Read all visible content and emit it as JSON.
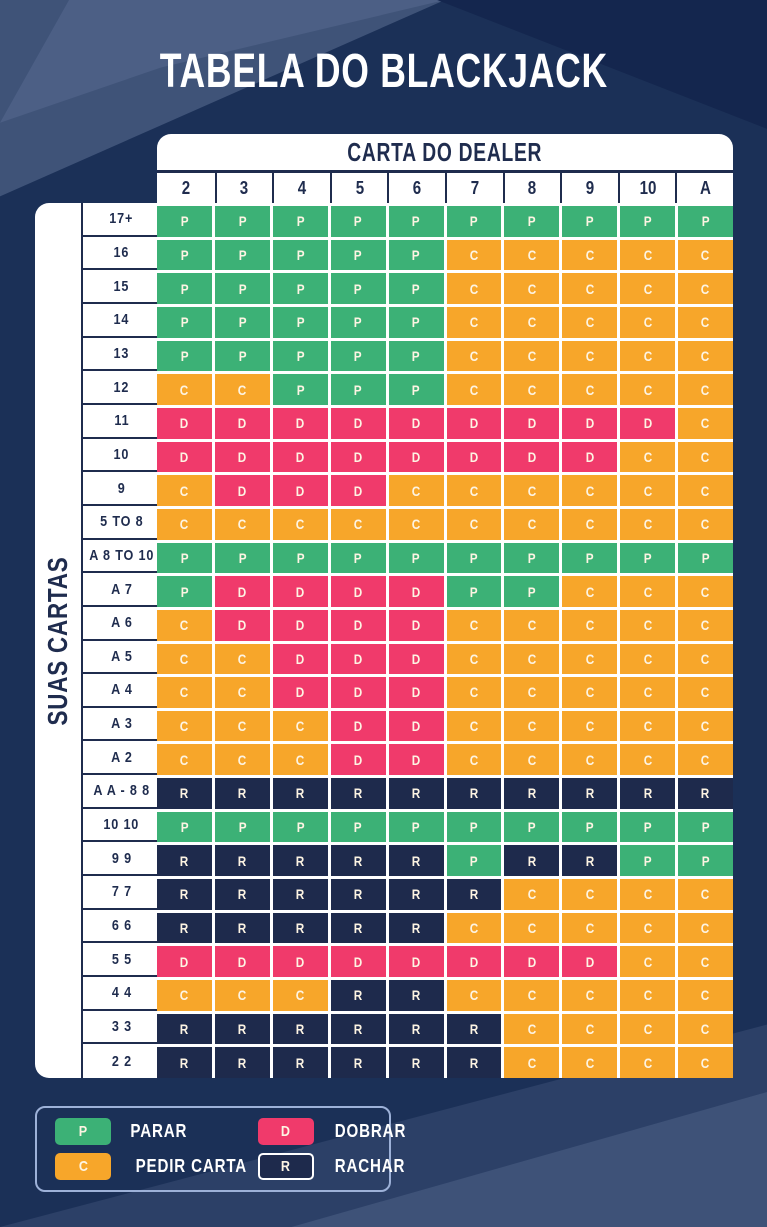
{
  "title": "TABELA DO BLACKJACK",
  "chart_data": {
    "type": "table",
    "title": "TABELA DO BLACKJACK",
    "column_group_label": "CARTA DO DEALER",
    "row_group_label": "SUAS CARTAS",
    "columns": [
      "2",
      "3",
      "4",
      "5",
      "6",
      "7",
      "8",
      "9",
      "10",
      "A"
    ],
    "rows": [
      {
        "label": "17+",
        "cells": [
          "P",
          "P",
          "P",
          "P",
          "P",
          "P",
          "P",
          "P",
          "P",
          "P"
        ]
      },
      {
        "label": "16",
        "cells": [
          "P",
          "P",
          "P",
          "P",
          "P",
          "C",
          "C",
          "C",
          "C",
          "C"
        ]
      },
      {
        "label": "15",
        "cells": [
          "P",
          "P",
          "P",
          "P",
          "P",
          "C",
          "C",
          "C",
          "C",
          "C"
        ]
      },
      {
        "label": "14",
        "cells": [
          "P",
          "P",
          "P",
          "P",
          "P",
          "C",
          "C",
          "C",
          "C",
          "C"
        ]
      },
      {
        "label": "13",
        "cells": [
          "P",
          "P",
          "P",
          "P",
          "P",
          "C",
          "C",
          "C",
          "C",
          "C"
        ]
      },
      {
        "label": "12",
        "cells": [
          "C",
          "C",
          "P",
          "P",
          "P",
          "C",
          "C",
          "C",
          "C",
          "C"
        ]
      },
      {
        "label": "11",
        "cells": [
          "D",
          "D",
          "D",
          "D",
          "D",
          "D",
          "D",
          "D",
          "D",
          "C"
        ]
      },
      {
        "label": "10",
        "cells": [
          "D",
          "D",
          "D",
          "D",
          "D",
          "D",
          "D",
          "D",
          "C",
          "C"
        ]
      },
      {
        "label": "9",
        "cells": [
          "C",
          "D",
          "D",
          "D",
          "C",
          "C",
          "C",
          "C",
          "C",
          "C"
        ]
      },
      {
        "label": "5 TO 8",
        "cells": [
          "C",
          "C",
          "C",
          "C",
          "C",
          "C",
          "C",
          "C",
          "C",
          "C"
        ]
      },
      {
        "label": "A 8 TO 10",
        "cells": [
          "P",
          "P",
          "P",
          "P",
          "P",
          "P",
          "P",
          "P",
          "P",
          "P"
        ]
      },
      {
        "label": "A 7",
        "cells": [
          "P",
          "D",
          "D",
          "D",
          "D",
          "P",
          "P",
          "C",
          "C",
          "C"
        ]
      },
      {
        "label": "A 6",
        "cells": [
          "C",
          "D",
          "D",
          "D",
          "D",
          "C",
          "C",
          "C",
          "C",
          "C"
        ]
      },
      {
        "label": "A 5",
        "cells": [
          "C",
          "C",
          "D",
          "D",
          "D",
          "C",
          "C",
          "C",
          "C",
          "C"
        ]
      },
      {
        "label": "A 4",
        "cells": [
          "C",
          "C",
          "D",
          "D",
          "D",
          "C",
          "C",
          "C",
          "C",
          "C"
        ]
      },
      {
        "label": "A 3",
        "cells": [
          "C",
          "C",
          "C",
          "D",
          "D",
          "C",
          "C",
          "C",
          "C",
          "C"
        ]
      },
      {
        "label": "A 2",
        "cells": [
          "C",
          "C",
          "C",
          "D",
          "D",
          "C",
          "C",
          "C",
          "C",
          "C"
        ]
      },
      {
        "label": "A A - 8 8",
        "cells": [
          "R",
          "R",
          "R",
          "R",
          "R",
          "R",
          "R",
          "R",
          "R",
          "R"
        ]
      },
      {
        "label": "10 10",
        "cells": [
          "P",
          "P",
          "P",
          "P",
          "P",
          "P",
          "P",
          "P",
          "P",
          "P"
        ]
      },
      {
        "label": "9 9",
        "cells": [
          "R",
          "R",
          "R",
          "R",
          "R",
          "P",
          "R",
          "R",
          "P",
          "P"
        ]
      },
      {
        "label": "7 7",
        "cells": [
          "R",
          "R",
          "R",
          "R",
          "R",
          "R",
          "C",
          "C",
          "C",
          "C"
        ]
      },
      {
        "label": "6 6",
        "cells": [
          "R",
          "R",
          "R",
          "R",
          "R",
          "C",
          "C",
          "C",
          "C",
          "C"
        ]
      },
      {
        "label": "5 5",
        "cells": [
          "D",
          "D",
          "D",
          "D",
          "D",
          "D",
          "D",
          "D",
          "C",
          "C"
        ]
      },
      {
        "label": "4 4",
        "cells": [
          "C",
          "C",
          "C",
          "R",
          "R",
          "C",
          "C",
          "C",
          "C",
          "C"
        ]
      },
      {
        "label": "3 3",
        "cells": [
          "R",
          "R",
          "R",
          "R",
          "R",
          "R",
          "C",
          "C",
          "C",
          "C"
        ]
      },
      {
        "label": "2 2",
        "cells": [
          "R",
          "R",
          "R",
          "R",
          "R",
          "R",
          "C",
          "C",
          "C",
          "C"
        ]
      }
    ],
    "legend": [
      {
        "code": "P",
        "label": "PARAR"
      },
      {
        "code": "D",
        "label": "DOBRAR"
      },
      {
        "code": "C",
        "label": "PEDIR CARTA"
      },
      {
        "code": "R",
        "label": "RACHAR"
      }
    ]
  },
  "colors": {
    "P": "#3cb176",
    "C": "#f7a62a",
    "D": "#f03a6b",
    "R": "#1e2a4c",
    "background": "#1b3057",
    "card": "#ffffff",
    "dark_text": "#1f2c4e",
    "cell_text": "#fdf4e3",
    "legend_border": "#9db1d8"
  }
}
